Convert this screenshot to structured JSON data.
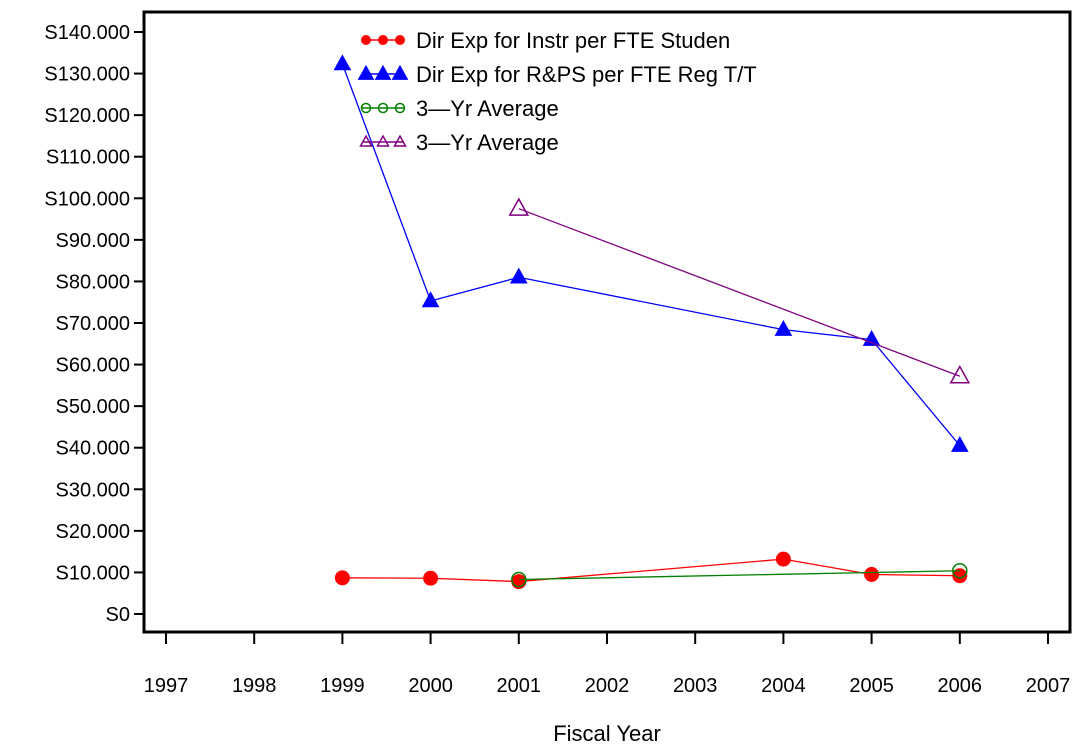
{
  "chart_data": {
    "type": "line",
    "title": "",
    "xlabel": "Fiscal Year",
    "ylabel": "",
    "x_ticks": [
      "1997",
      "1998",
      "1999",
      "2000",
      "2001",
      "2002",
      "2003",
      "2004",
      "2005",
      "2006",
      "2007"
    ],
    "y_ticks": [
      "S0",
      "S10.000",
      "S20.000",
      "S30.000",
      "S40.000",
      "S50.000",
      "S60.000",
      "S70.000",
      "S80.000",
      "S90.000",
      "S100.000",
      "S110.000",
      "S120.000",
      "S130.000",
      "S140.000"
    ],
    "xlim": [
      1997,
      2007
    ],
    "ylim": [
      0,
      140000
    ],
    "grid": false,
    "legend_position": "top-center",
    "series": [
      {
        "name": "Dir Exp for Instr per FTE Studen",
        "color": "#ff0000",
        "marker": "filled-circle",
        "x": [
          1999,
          2000,
          2001,
          2004,
          2005,
          2006
        ],
        "values": [
          8700,
          8600,
          7800,
          13200,
          9500,
          9200
        ]
      },
      {
        "name": "Dir Exp for R&PS per FTE Reg T/T",
        "color": "#0000ff",
        "marker": "filled-triangle",
        "x": [
          1999,
          2000,
          2001,
          2004,
          2005,
          2006
        ],
        "values": [
          132300,
          75300,
          81000,
          68400,
          66000,
          40500
        ]
      },
      {
        "name": "3—Yr Average",
        "color": "#008000",
        "marker": "open-circle",
        "x": [
          2001,
          2006
        ],
        "values": [
          8300,
          10400
        ]
      },
      {
        "name": "3—Yr Average",
        "color": "#800080",
        "marker": "open-triangle",
        "x": [
          2001,
          2006
        ],
        "values": [
          97500,
          57200
        ]
      }
    ]
  }
}
